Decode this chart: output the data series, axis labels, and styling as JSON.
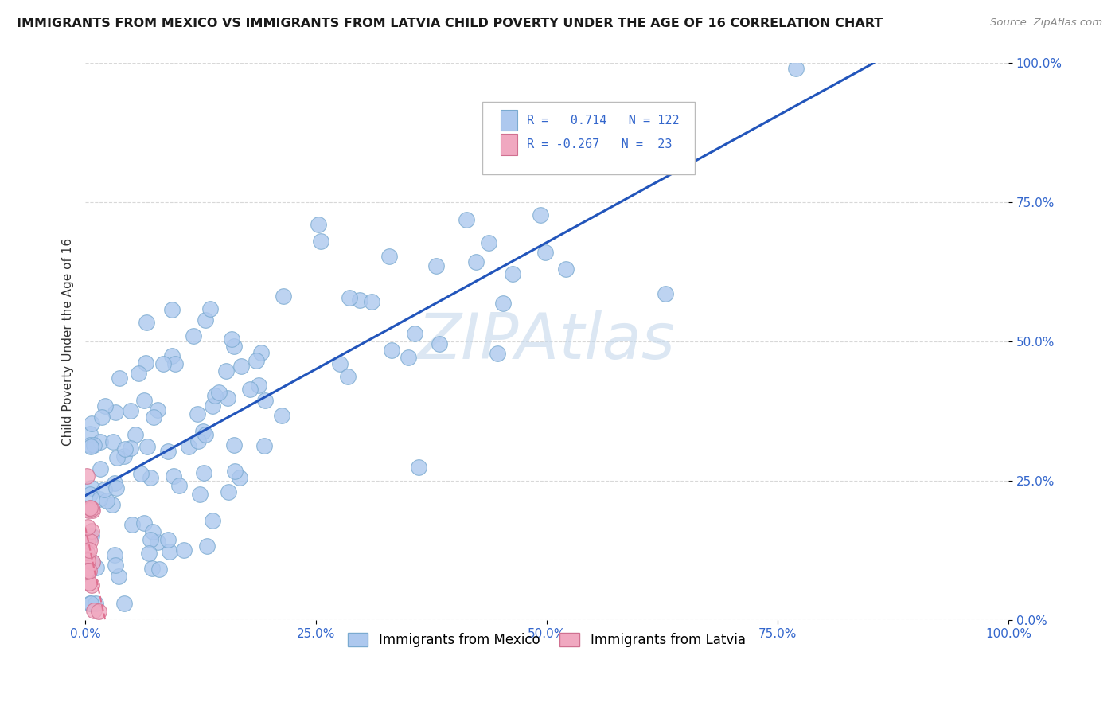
{
  "title": "IMMIGRANTS FROM MEXICO VS IMMIGRANTS FROM LATVIA CHILD POVERTY UNDER THE AGE OF 16 CORRELATION CHART",
  "source": "Source: ZipAtlas.com",
  "ylabel": "Child Poverty Under the Age of 16",
  "r_mexico": 0.714,
  "n_mexico": 122,
  "r_latvia": -0.267,
  "n_latvia": 23,
  "xlim": [
    0,
    1
  ],
  "ylim": [
    0,
    1
  ],
  "xticks": [
    0.0,
    0.25,
    0.5,
    0.75,
    1.0
  ],
  "yticks": [
    0.0,
    0.25,
    0.5,
    0.75,
    1.0
  ],
  "xticklabels": [
    "0.0%",
    "25.0%",
    "50.0%",
    "75.0%",
    "100.0%"
  ],
  "yticklabels": [
    "0.0%",
    "25.0%",
    "50.0%",
    "75.0%",
    "100.0%"
  ],
  "background_color": "#ffffff",
  "grid_color": "#d8d8d8",
  "watermark": "ZIPAtlas",
  "watermark_color": "#c5d8ec",
  "mexico_dot_color": "#adc8ee",
  "mexico_dot_edge": "#7aaad0",
  "latvia_dot_color": "#f0a8c0",
  "latvia_dot_edge": "#d07090",
  "mexico_line_color": "#2255bb",
  "latvia_line_color": "#e07090",
  "tick_color": "#3366cc",
  "legend_entry1": "R =   0.714   N = 122",
  "legend_entry2": "R = -0.267   N =  23",
  "bottom_legend1": "Immigrants from Mexico",
  "bottom_legend2": "Immigrants from Latvia"
}
